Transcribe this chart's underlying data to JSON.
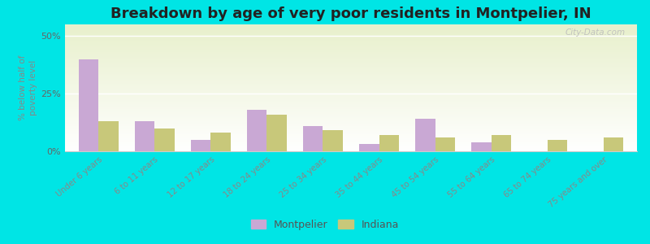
{
  "title": "Breakdown by age of very poor residents in Montpelier, IN",
  "categories": [
    "Under 6 years",
    "6 to 11 years",
    "12 to 17 years",
    "18 to 24 years",
    "25 to 34 years",
    "35 to 44 years",
    "45 to 54 years",
    "55 to 64 years",
    "65 to 74 years",
    "75 years and over"
  ],
  "montpelier": [
    40,
    13,
    5,
    18,
    11,
    3,
    14,
    4,
    0,
    0
  ],
  "indiana": [
    13,
    10,
    8,
    16,
    9,
    7,
    6,
    7,
    5,
    6
  ],
  "montpelier_color": "#c9a8d4",
  "indiana_color": "#c8c87a",
  "background_color": "#00e5e5",
  "ylabel": "% below half of\npoverty level",
  "ylim": [
    0,
    55
  ],
  "yticks": [
    0,
    25,
    50
  ],
  "ytick_labels": [
    "0%",
    "25%",
    "50%"
  ],
  "title_fontsize": 13,
  "bar_width": 0.35,
  "watermark": "City-Data.com"
}
